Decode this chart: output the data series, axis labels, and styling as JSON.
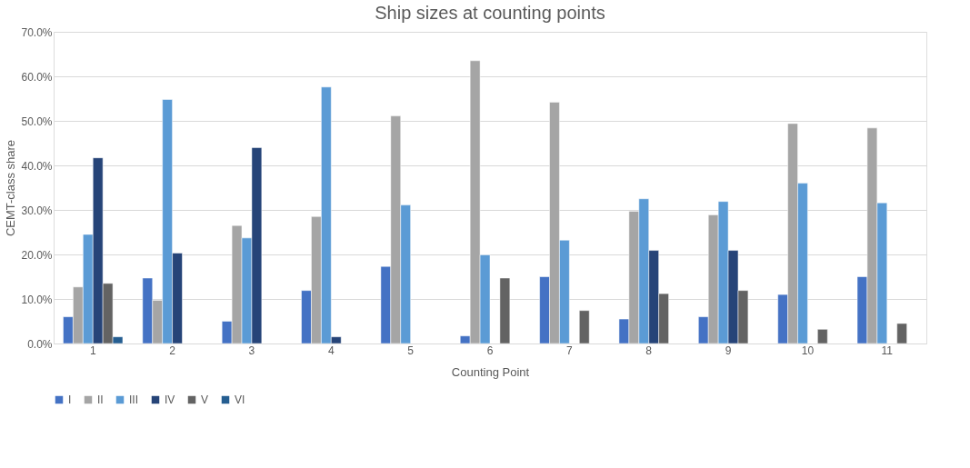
{
  "chart_data": {
    "type": "bar",
    "title": "Ship sizes at counting points",
    "xlabel": "Counting Point",
    "ylabel": "CEMT-class share",
    "categories": [
      "1",
      "2",
      "3",
      "4",
      "5",
      "6",
      "7",
      "8",
      "9",
      "10",
      "11"
    ],
    "series": [
      {
        "name": "I",
        "color": "#4472c4",
        "values": [
          6.0,
          14.7,
          5.0,
          11.9,
          17.3,
          1.7,
          15.0,
          5.5,
          6.0,
          11.0,
          15.0
        ]
      },
      {
        "name": "II",
        "color": "#a5a5a5",
        "values": [
          12.7,
          9.7,
          26.5,
          28.5,
          51.1,
          63.5,
          54.2,
          29.7,
          28.9,
          49.4,
          48.4
        ]
      },
      {
        "name": "III",
        "color": "#5b9bd5",
        "values": [
          24.5,
          54.8,
          23.7,
          57.6,
          31.1,
          19.9,
          23.2,
          32.5,
          31.9,
          36.0,
          31.6
        ]
      },
      {
        "name": "IV",
        "color": "#264478",
        "values": [
          41.7,
          20.3,
          44.0,
          1.5,
          null,
          null,
          null,
          20.9,
          20.9,
          null,
          null
        ]
      },
      {
        "name": "V",
        "color": "#636363",
        "values": [
          13.5,
          null,
          null,
          null,
          null,
          14.7,
          7.4,
          11.2,
          11.9,
          3.2,
          4.5
        ]
      },
      {
        "name": "VI",
        "color": "#255e91",
        "values": [
          1.5,
          null,
          null,
          null,
          null,
          null,
          null,
          null,
          null,
          null,
          null
        ]
      }
    ],
    "ylim": [
      0,
      70
    ],
    "yticks": [
      {
        "value": 0,
        "label": "0.0%"
      },
      {
        "value": 10,
        "label": "10.0%"
      },
      {
        "value": 20,
        "label": "20.0%"
      },
      {
        "value": 30,
        "label": "30.0%"
      },
      {
        "value": 40,
        "label": "40.0%"
      },
      {
        "value": 50,
        "label": "50.0%"
      },
      {
        "value": 60,
        "label": "60.0%"
      },
      {
        "value": 70,
        "label": "70.0%"
      }
    ],
    "grid": "y",
    "legend": "bottom"
  }
}
